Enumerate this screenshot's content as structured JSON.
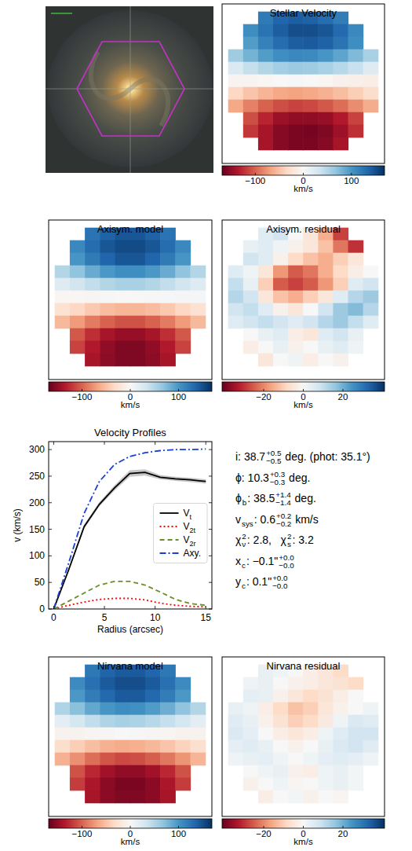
{
  "chart_data": [
    {
      "type": "heatmap",
      "title": "Stellar Velocity",
      "cells": [
        [
          null,
          null,
          120,
          135,
          140,
          138,
          130,
          118,
          null,
          null
        ],
        [
          null,
          105,
          125,
          140,
          150,
          150,
          145,
          132,
          110,
          null
        ],
        [
          null,
          95,
          115,
          130,
          140,
          142,
          138,
          125,
          105,
          null
        ],
        [
          60,
          80,
          95,
          105,
          110,
          108,
          100,
          90,
          75,
          55
        ],
        [
          25,
          40,
          50,
          58,
          62,
          60,
          55,
          48,
          38,
          22
        ],
        [
          -5,
          -5,
          -3,
          0,
          2,
          0,
          -3,
          -8,
          -10,
          -12
        ],
        [
          -35,
          -48,
          -58,
          -65,
          -68,
          -65,
          -60,
          -52,
          -42,
          -30
        ],
        [
          -65,
          -85,
          -100,
          -110,
          -115,
          -112,
          -105,
          -95,
          -80,
          -62
        ],
        [
          null,
          -110,
          -130,
          -145,
          -150,
          -150,
          -148,
          -135,
          -115,
          null
        ],
        [
          null,
          -120,
          -140,
          -155,
          -160,
          -162,
          -158,
          -145,
          -125,
          null
        ],
        [
          null,
          null,
          -140,
          -155,
          -160,
          -160,
          -155,
          -140,
          null,
          null
        ]
      ],
      "colorbar": {
        "label": "km/s",
        "lim": [
          -169,
          169
        ],
        "ticks": [
          {
            "value": -100,
            "label": "−100"
          },
          0,
          100
        ]
      }
    },
    {
      "type": "heatmap",
      "title": "Axisym. model",
      "cells": [
        [
          null,
          null,
          125,
          138,
          145,
          145,
          138,
          125,
          null,
          null
        ],
        [
          null,
          110,
          130,
          145,
          152,
          152,
          145,
          130,
          110,
          null
        ],
        [
          null,
          100,
          120,
          135,
          145,
          145,
          135,
          120,
          100,
          null
        ],
        [
          50,
          68,
          85,
          98,
          105,
          105,
          98,
          85,
          68,
          50
        ],
        [
          22,
          32,
          42,
          50,
          55,
          55,
          50,
          42,
          32,
          22
        ],
        [
          -3,
          -3,
          -2,
          -1,
          0,
          0,
          1,
          2,
          3,
          3
        ],
        [
          -25,
          -35,
          -45,
          -53,
          -57,
          -57,
          -53,
          -45,
          -35,
          -25
        ],
        [
          -55,
          -72,
          -88,
          -100,
          -108,
          -108,
          -100,
          -88,
          -72,
          -55
        ],
        [
          null,
          -105,
          -125,
          -140,
          -148,
          -148,
          -140,
          -125,
          -105,
          null
        ],
        [
          null,
          -115,
          -135,
          -150,
          -158,
          -158,
          -150,
          -135,
          -115,
          null
        ],
        [
          null,
          null,
          -140,
          -152,
          -158,
          -158,
          -152,
          -140,
          null,
          null
        ]
      ],
      "colorbar": {
        "label": "km/s",
        "lim": [
          -169,
          169
        ],
        "ticks": [
          {
            "value": -100,
            "label": "−100"
          },
          0,
          100
        ]
      }
    },
    {
      "type": "heatmap",
      "title": "Axisym. residual",
      "cells": [
        [
          null,
          null,
          5,
          8,
          0,
          -5,
          -15,
          -28,
          null,
          null
        ],
        [
          null,
          3,
          5,
          2,
          -2,
          -5,
          -12,
          -22,
          -30,
          null
        ],
        [
          null,
          8,
          5,
          -2,
          -8,
          -12,
          -15,
          -10,
          -5,
          null
        ],
        [
          5,
          2,
          -5,
          -18,
          -25,
          -22,
          -15,
          -8,
          -3,
          0
        ],
        [
          10,
          3,
          -10,
          -25,
          -28,
          -25,
          -18,
          -10,
          5,
          8
        ],
        [
          12,
          8,
          -5,
          -12,
          -15,
          -10,
          -5,
          5,
          12,
          15
        ],
        [
          8,
          10,
          5,
          -2,
          -5,
          0,
          8,
          15,
          18,
          12
        ],
        [
          5,
          8,
          10,
          8,
          5,
          8,
          12,
          15,
          10,
          5
        ],
        [
          null,
          0,
          3,
          5,
          -3,
          -5,
          5,
          8,
          3,
          null
        ],
        [
          null,
          -3,
          0,
          3,
          -2,
          0,
          3,
          5,
          2,
          null
        ],
        [
          null,
          null,
          -5,
          0,
          2,
          -3,
          0,
          -2,
          null,
          null
        ]
      ],
      "colorbar": {
        "label": "km/s",
        "lim": [
          -41,
          41
        ],
        "ticks": [
          {
            "value": -20,
            "label": "−20"
          },
          0,
          20
        ]
      }
    },
    {
      "type": "line",
      "title": "Velocity Profiles",
      "xlabel": "Radius (arcsec)",
      "ylabel": "v (km/s)",
      "x": [
        0,
        1.5,
        3,
        4.5,
        6,
        7.5,
        9,
        10.5,
        12,
        13.5,
        15
      ],
      "xlim": [
        -0.5,
        15.6
      ],
      "xticks": [
        0,
        5,
        10,
        15
      ],
      "ylim": [
        0,
        315
      ],
      "yticks": [
        0,
        50,
        100,
        150,
        200,
        250,
        300
      ],
      "grid": false,
      "legend": "center right",
      "series": [
        {
          "name": "Vt",
          "color": "#000000",
          "line_style": "solid",
          "values": [
            0,
            75,
            155,
            197,
            228,
            255,
            257,
            248,
            245,
            243,
            240
          ],
          "errors": [
            0,
            3,
            4,
            4,
            5,
            6,
            6,
            4,
            4,
            4,
            4
          ]
        },
        {
          "name": "V2t",
          "color": "#ff0000",
          "line_style": "dotted",
          "values": [
            0,
            7,
            13,
            18,
            20,
            20,
            17,
            11,
            7,
            5,
            4
          ]
        },
        {
          "name": "V2r",
          "color": "#6b8e23",
          "line_style": "dashed",
          "values": [
            0,
            15,
            30,
            45,
            52,
            52,
            45,
            32,
            18,
            10,
            7
          ]
        },
        {
          "name": "Axy.",
          "color": "#1a3fd9",
          "line_style": "dashdot",
          "values": [
            0,
            88,
            180,
            240,
            272,
            287,
            294,
            298,
            300,
            300,
            301
          ]
        }
      ],
      "annotations": [
        [
          {
            "text": "i: 38.7"
          },
          {
            "sup": "+0.5",
            "sub": "−0.5"
          },
          {
            "text": " deg. (phot: 35.1°)"
          }
        ],
        [
          {
            "text": "ϕ: 10.3"
          },
          {
            "sup": "+0.3",
            "sub": "−0.3"
          },
          {
            "text": " deg."
          }
        ],
        [
          {
            "text": "ϕ"
          },
          {
            "sub": "b"
          },
          {
            "text": ": 38.5"
          },
          {
            "sup": "+1.4",
            "sub": "−1.4"
          },
          {
            "text": " deg."
          }
        ],
        [
          {
            "text": "v"
          },
          {
            "sub": "sys"
          },
          {
            "text": ": 0.6"
          },
          {
            "sup": "+0.2",
            "sub": "−0.2"
          },
          {
            "text": " km/s"
          }
        ],
        [
          {
            "text": "χ"
          },
          {
            "sup": "2",
            "sub": "ν"
          },
          {
            "text": ": 2.8,   χ"
          },
          {
            "sup": "2",
            "sub": "s"
          },
          {
            "text": ": 3.2"
          }
        ],
        [
          {
            "text": "x"
          },
          {
            "sub": "c"
          },
          {
            "text": ": −0.1\""
          },
          {
            "sup": "+0.0",
            "sub": "−0.0"
          }
        ],
        [
          {
            "text": "y"
          },
          {
            "sub": "c"
          },
          {
            "text": ": 0.1\""
          },
          {
            "sup": "+0.0",
            "sub": "−0.0"
          }
        ]
      ]
    },
    {
      "type": "heatmap",
      "title": "Nirvana model",
      "cells": [
        [
          null,
          null,
          122,
          136,
          143,
          142,
          135,
          122,
          null,
          null
        ],
        [
          null,
          108,
          128,
          143,
          150,
          150,
          143,
          128,
          108,
          null
        ],
        [
          null,
          98,
          118,
          133,
          142,
          142,
          133,
          118,
          98,
          null
        ],
        [
          52,
          70,
          88,
          100,
          106,
          104,
          96,
          84,
          68,
          50
        ],
        [
          18,
          30,
          42,
          52,
          56,
          54,
          48,
          40,
          30,
          18
        ],
        [
          -6,
          -6,
          -4,
          -2,
          0,
          -1,
          -2,
          -4,
          -6,
          -6
        ],
        [
          -30,
          -42,
          -52,
          -60,
          -63,
          -61,
          -56,
          -48,
          -38,
          -28
        ],
        [
          -60,
          -78,
          -94,
          -106,
          -112,
          -110,
          -102,
          -90,
          -75,
          -58
        ],
        [
          null,
          -108,
          -128,
          -143,
          -150,
          -150,
          -143,
          -128,
          -108,
          null
        ],
        [
          null,
          -118,
          -138,
          -153,
          -160,
          -160,
          -153,
          -138,
          -118,
          null
        ],
        [
          null,
          null,
          -140,
          -153,
          -158,
          -158,
          -153,
          -140,
          null,
          null
        ]
      ],
      "colorbar": {
        "label": "km/s",
        "lim": [
          -169,
          169
        ],
        "ticks": [
          {
            "value": -100,
            "label": "−100"
          },
          0,
          100
        ]
      }
    },
    {
      "type": "heatmap",
      "title": "Nirvana residual",
      "cells": [
        [
          null,
          null,
          3,
          2,
          0,
          -3,
          -5,
          -8,
          null,
          null
        ],
        [
          null,
          2,
          3,
          0,
          -2,
          -3,
          -5,
          -6,
          -8,
          null
        ],
        [
          null,
          4,
          3,
          -2,
          -5,
          -8,
          -6,
          -3,
          0,
          null
        ],
        [
          3,
          2,
          -3,
          -8,
          -12,
          -10,
          -5,
          -2,
          0,
          2
        ],
        [
          5,
          3,
          -2,
          -6,
          -10,
          -8,
          -4,
          2,
          6,
          5
        ],
        [
          6,
          4,
          0,
          -3,
          -5,
          -3,
          2,
          5,
          8,
          8
        ],
        [
          4,
          5,
          3,
          0,
          -2,
          0,
          3,
          6,
          8,
          5
        ],
        [
          2,
          3,
          4,
          2,
          0,
          2,
          4,
          5,
          4,
          2
        ],
        [
          null,
          0,
          2,
          3,
          -2,
          -3,
          2,
          3,
          1,
          null
        ],
        [
          null,
          -2,
          0,
          2,
          -1,
          0,
          2,
          3,
          1,
          null
        ],
        [
          null,
          null,
          -3,
          0,
          1,
          -2,
          0,
          -1,
          null,
          null
        ]
      ],
      "colorbar": {
        "label": "km/s",
        "lim": [
          -41,
          41
        ],
        "ticks": [
          {
            "value": -20,
            "label": "−20"
          },
          0,
          20
        ]
      }
    }
  ]
}
